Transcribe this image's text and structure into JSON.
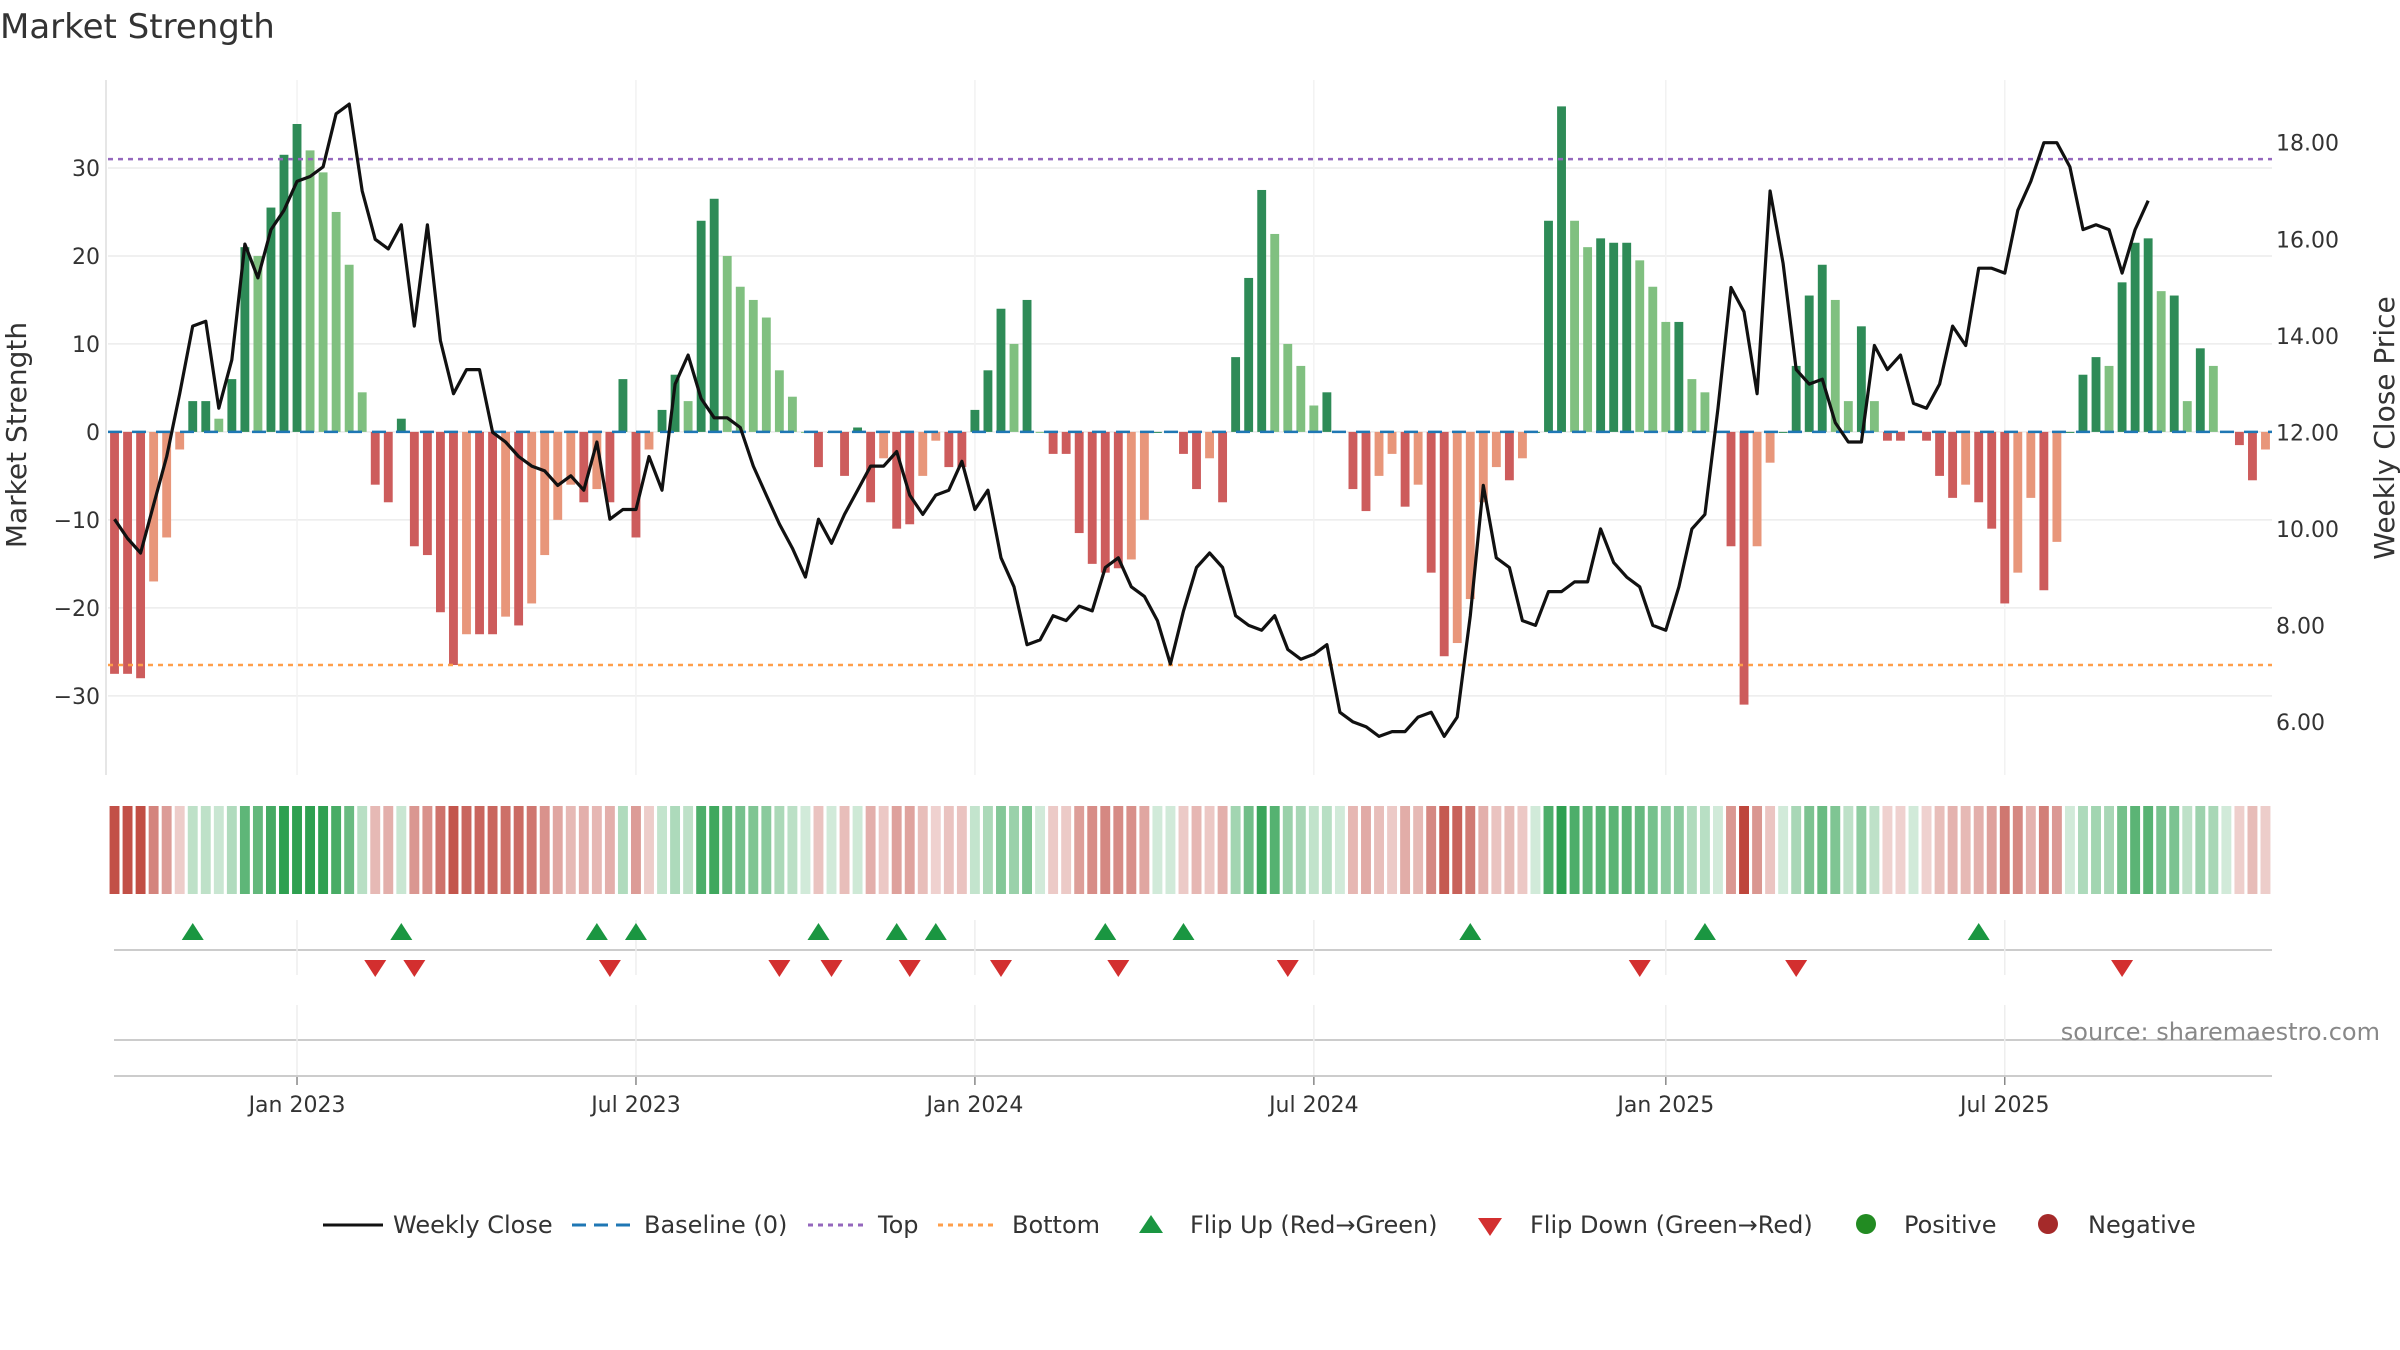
{
  "chart_data": {
    "type": "bar+line",
    "title": "Market Strength",
    "ylabel_left": "Market Strength",
    "ylabel_right": "Weekly Close Price",
    "left_yticks": [
      30,
      20,
      10,
      0,
      -10,
      -20,
      -30
    ],
    "left_ytick_labels": [
      "30",
      "20",
      "10",
      "0",
      "−10",
      "−20",
      "−30"
    ],
    "left_ylim": [
      -39,
      40
    ],
    "right_yticks": [
      18,
      16,
      14,
      12,
      10,
      8,
      6
    ],
    "right_ytick_labels": [
      "18.00",
      "16.00",
      "14.00",
      "12.00",
      "10.00",
      "8.00",
      "6.00"
    ],
    "right_ylim": [
      4.9,
      19.3
    ],
    "x_ticks": [
      {
        "week": 14,
        "label": "Jan 2023"
      },
      {
        "week": 40,
        "label": "Jul 2023"
      },
      {
        "week": 66,
        "label": "Jan 2024"
      },
      {
        "week": 92,
        "label": "Jul 2024"
      },
      {
        "week": 119,
        "label": "Jan 2025"
      },
      {
        "week": 145,
        "label": "Jul 2025"
      }
    ],
    "top_level": 31,
    "bottom_level": -26.5,
    "strength": [
      -27.5,
      -27.5,
      -28,
      -17,
      -12,
      -2,
      3.5,
      3.5,
      1.5,
      6,
      21,
      20,
      25.5,
      31.5,
      35,
      32,
      29.5,
      25,
      19,
      4.5,
      -6,
      -8,
      1.5,
      -13,
      -14,
      -20.5,
      -26.5,
      -23,
      -23,
      -23,
      -21,
      -22,
      -19.5,
      -14,
      -10,
      -6,
      -8,
      -6.5,
      -8,
      6,
      -12,
      -2,
      2.5,
      6.5,
      3.5,
      24,
      26.5,
      20,
      16.5,
      15,
      13,
      7,
      4,
      0,
      -4,
      0,
      -5,
      0.5,
      -8,
      -3,
      -11,
      -10.5,
      -5,
      -1,
      -4,
      -4,
      2.5,
      7,
      14,
      10,
      15,
      0,
      -2.5,
      -2.5,
      -11.5,
      -15,
      -16,
      -15.5,
      -14.5,
      -10,
      0,
      0,
      -2.5,
      -6.5,
      -3,
      -8,
      8.5,
      17.5,
      27.5,
      22.5,
      10,
      7.5,
      3,
      4.5,
      0,
      -6.5,
      -9,
      -5,
      -2.5,
      -8.5,
      -6,
      -16,
      -25.5,
      -24,
      -19,
      -8,
      -4,
      -5.5,
      -3,
      0,
      24,
      37,
      24,
      21,
      22,
      21.5,
      21.5,
      19.5,
      16.5,
      12.5,
      12.5,
      6,
      4.5,
      0,
      -13,
      -31,
      -13,
      -3.5,
      0,
      7.5,
      15.5,
      19,
      15,
      3.5,
      12,
      3.5,
      -1,
      -1,
      0,
      -1,
      -5,
      -7.5,
      -6,
      -8,
      -11,
      -19.5,
      -16,
      -7.5,
      -18,
      -12.5,
      0,
      6.5,
      8.5,
      7.5,
      17,
      21.5,
      22,
      16,
      15.5,
      3.5,
      9.5,
      7.5,
      0,
      -1.5,
      -5.5,
      -2
    ],
    "weekly_close": [
      10.2,
      9.8,
      9.5,
      10.5,
      11.5,
      12.8,
      14.2,
      14.3,
      12.5,
      13.5,
      15.9,
      15.2,
      16.2,
      16.6,
      17.2,
      17.3,
      17.5,
      18.6,
      18.8,
      17,
      16,
      15.8,
      16.3,
      14.2,
      16.3,
      13.9,
      12.8,
      13.3,
      13.3,
      12,
      11.8,
      11.5,
      11.3,
      11.2,
      10.9,
      11.1,
      10.8,
      11.8,
      10.2,
      10.4,
      10.4,
      11.5,
      10.8,
      13,
      13.6,
      12.7,
      12.3,
      12.3,
      12.1,
      11.3,
      10.7,
      10.1,
      9.6,
      9,
      10.2,
      9.7,
      10.3,
      10.8,
      11.3,
      11.3,
      11.6,
      10.7,
      10.3,
      10.7,
      10.8,
      11.4,
      10.4,
      10.8,
      9.4,
      8.8,
      7.6,
      7.7,
      8.2,
      8.1,
      8.4,
      8.3,
      9.2,
      9.4,
      8.8,
      8.6,
      8.1,
      7.2,
      8.3,
      9.2,
      9.5,
      9.2,
      8.2,
      8,
      7.9,
      8.2,
      7.5,
      7.3,
      7.4,
      7.6,
      6.2,
      6,
      5.9,
      5.7,
      5.8,
      5.8,
      6.1,
      6.2,
      5.7,
      6.1,
      8.2,
      10.9,
      9.4,
      9.2,
      8.1,
      8,
      8.7,
      8.7,
      8.9,
      8.9,
      10,
      9.3,
      9,
      8.8,
      8.0,
      7.9,
      8.8,
      10,
      10.3,
      12.5,
      15,
      14.5,
      12.8,
      17,
      15.5,
      13.3,
      13,
      13.1,
      12.2,
      11.8,
      11.8,
      13.8,
      13.3,
      13.6,
      12.6,
      12.5,
      13,
      14.2,
      13.8,
      15.4,
      15.4,
      15.3,
      16.6,
      17.2,
      18,
      18,
      17.5,
      16.2,
      16.3,
      16.2,
      15.3,
      16.2,
      16.8
    ],
    "flip_up_weeks": [
      6,
      22,
      37,
      40,
      54,
      60,
      63,
      76,
      82,
      104,
      122,
      143
    ],
    "flip_down_weeks": [
      20,
      23,
      38,
      51,
      55,
      61,
      68,
      77,
      90,
      117,
      129,
      154
    ],
    "legend": [
      "Weekly Close",
      "Baseline (0)",
      "Top",
      "Bottom",
      "Flip Up (Red→Green)",
      "Flip Down (Green→Red)",
      "Positive",
      "Negative"
    ],
    "source_note": "source: sharemaestro.com"
  },
  "colors": {
    "pos_strong": "#2e8b57",
    "pos_weak": "#80c080",
    "neg_strong": "#cd5c5c",
    "neg_weak": "#e8967a",
    "line": "#111111",
    "baseline": "#1f77b4",
    "top": "#9467bd",
    "bottom": "#ff9f4a",
    "flip_up": "#1a9641",
    "flip_down": "#d32f2f",
    "positive_dot": "#228b22",
    "negative_dot": "#a52a2a"
  }
}
